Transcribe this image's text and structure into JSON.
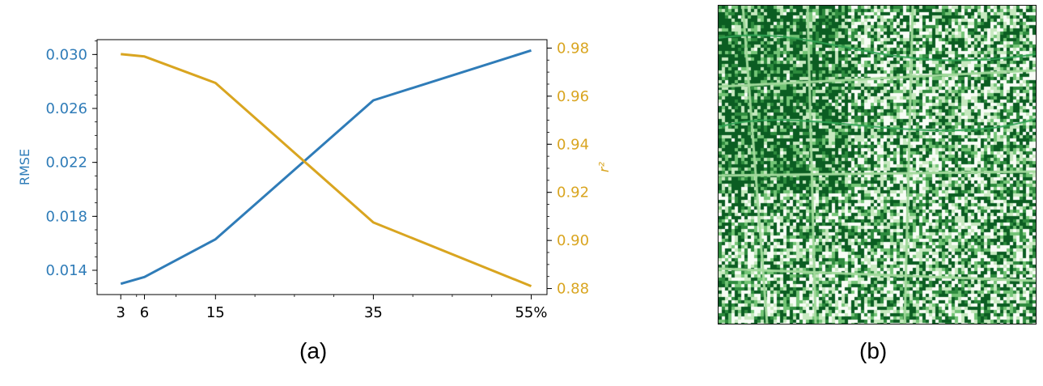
{
  "chart_data": {
    "type": "line",
    "x": [
      3,
      6,
      15,
      35,
      55
    ],
    "xticklabels": [
      "3",
      "6",
      "15",
      "35",
      "55%"
    ],
    "xlim": [
      0,
      57
    ],
    "series": [
      {
        "axis": "left",
        "color": "#2f7cb8",
        "values": [
          0.013,
          0.0135,
          0.0163,
          0.0266,
          0.0303
        ]
      },
      {
        "axis": "right",
        "color": "#d9a520",
        "values": [
          0.9775,
          0.9765,
          0.9655,
          0.9075,
          0.881
        ]
      }
    ],
    "y_left": {
      "label": "RMSE",
      "ylim": [
        0.0122,
        0.0311
      ],
      "ticks": [
        0.014,
        0.018,
        0.022,
        0.026,
        0.03
      ],
      "ticklabels": [
        "0.014",
        "0.018",
        "0.022",
        "0.026",
        "0.030"
      ]
    },
    "y_right": {
      "label": "r²",
      "ylim": [
        0.8775,
        0.9835
      ],
      "ticks": [
        0.88,
        0.9,
        0.92,
        0.94,
        0.96,
        0.98
      ],
      "ticklabels": [
        "0.88",
        "0.90",
        "0.92",
        "0.94",
        "0.96",
        "0.98"
      ]
    },
    "grid": false
  },
  "captions": {
    "a": "(a)",
    "b": "(b)"
  },
  "map": {
    "palette": [
      "#0b5d22",
      "#2e8b3e",
      "#74c476",
      "#c7e9c0",
      "#f7fcf5"
    ]
  }
}
